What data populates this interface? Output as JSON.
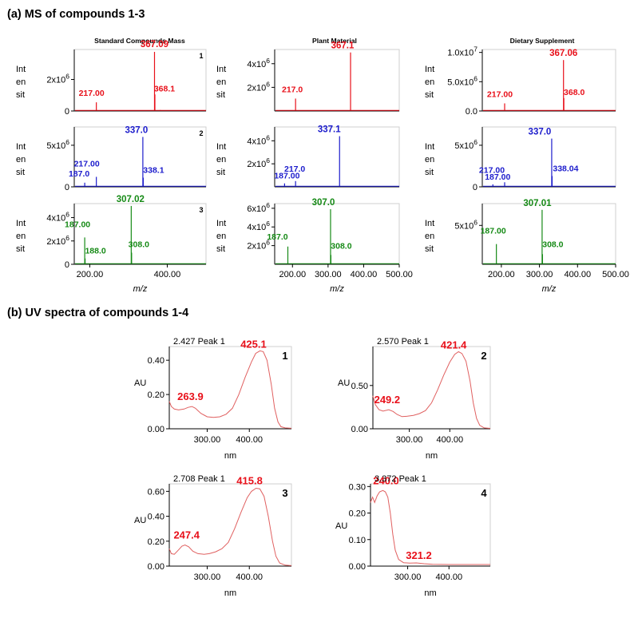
{
  "sections": {
    "a_title": "(a)  MS of compounds 1-3",
    "b_title": "(b) UV spectra of compounds 1-4"
  },
  "ms": {
    "column_titles": [
      "Standard Compounds Mass",
      "Plant Material",
      "Dietary Supplement"
    ],
    "ylabel_lines": [
      "Int",
      "en",
      "sit"
    ],
    "xlabel": "m/z",
    "colors": {
      "compound1": "#e8101a",
      "compound2": "#1c1ccc",
      "compound3": "#168a16"
    }
  },
  "uv": {
    "xlabel": "nm",
    "ylabel": "AU",
    "line_color": "#e06060",
    "label_color": "#e8101a"
  },
  "chart_data": [
    {
      "id": "ms1_std",
      "type": "line",
      "kind": "ms",
      "series_color": "compound1",
      "xlim": [
        160,
        500
      ],
      "ylim": [
        0,
        3900000
      ],
      "yticks": [
        {
          "v": 0,
          "label": "0"
        },
        {
          "v": 2000000,
          "label": "2x10^6"
        }
      ],
      "xticks": [],
      "panel_number": "1",
      "baseline": [
        [
          160,
          500
        ]
      ],
      "peaks": [
        {
          "x": 217.0,
          "y": 550000,
          "label": "217.00"
        },
        {
          "x": 367.09,
          "y": 3750000,
          "label": "367.09"
        },
        {
          "x": 368.1,
          "y": 1050000,
          "label": "368.1"
        },
        {
          "x": 382,
          "y": 60000,
          "label": ""
        },
        {
          "x": 438,
          "y": 50000,
          "label": ""
        }
      ]
    },
    {
      "id": "ms1_plant",
      "type": "line",
      "kind": "ms",
      "series_color": "compound1",
      "xlim": [
        160,
        500
      ],
      "ylim": [
        0,
        5200000
      ],
      "yticks": [
        {
          "v": 2000000,
          "label": "2x10^6"
        },
        {
          "v": 4000000,
          "label": "4x10^6"
        }
      ],
      "xticks": [],
      "panel_number": "",
      "baseline": [
        [
          160,
          500
        ]
      ],
      "peaks": [
        {
          "x": 217.0,
          "y": 1050000,
          "label": "217.0"
        },
        {
          "x": 367.1,
          "y": 4950000,
          "label": "367.1"
        }
      ]
    },
    {
      "id": "ms1_diet",
      "type": "line",
      "kind": "ms",
      "series_color": "compound1",
      "xlim": [
        160,
        500
      ],
      "ylim": [
        0,
        10500000
      ],
      "yticks": [
        {
          "v": 0,
          "label": "0.0"
        },
        {
          "v": 5000000,
          "label": "5.0x10^6"
        },
        {
          "v": 10000000,
          "label": "1.0x10^7"
        }
      ],
      "xticks": [],
      "panel_number": "",
      "baseline": [
        [
          160,
          500
        ]
      ],
      "peaks": [
        {
          "x": 217.0,
          "y": 1300000,
          "label": "217.00"
        },
        {
          "x": 367.06,
          "y": 8700000,
          "label": "367.06"
        },
        {
          "x": 368.0,
          "y": 2200000,
          "label": "368.0"
        }
      ]
    },
    {
      "id": "ms2_std",
      "type": "line",
      "kind": "ms",
      "series_color": "compound2",
      "xlim": [
        160,
        500
      ],
      "ylim": [
        0,
        7200000
      ],
      "yticks": [
        {
          "v": 0,
          "label": "0"
        },
        {
          "v": 5000000,
          "label": "5x10^6"
        }
      ],
      "xticks": [],
      "panel_number": "2",
      "baseline": [
        [
          160,
          500
        ]
      ],
      "peaks": [
        {
          "x": 187.0,
          "y": 500000,
          "label": "187.0"
        },
        {
          "x": 217.0,
          "y": 1200000,
          "label": "217.00"
        },
        {
          "x": 337.0,
          "y": 6000000,
          "label": "337.0"
        },
        {
          "x": 338.1,
          "y": 1100000,
          "label": "338.1"
        }
      ]
    },
    {
      "id": "ms2_plant",
      "type": "line",
      "kind": "ms",
      "series_color": "compound2",
      "xlim": [
        160,
        500
      ],
      "ylim": [
        0,
        5200000
      ],
      "yticks": [
        {
          "v": 2000000,
          "label": "2x10^6"
        },
        {
          "v": 4000000,
          "label": "4x10^6"
        }
      ],
      "xticks": [],
      "panel_number": "",
      "baseline": [
        [
          160,
          500
        ]
      ],
      "peaks": [
        {
          "x": 187.0,
          "y": 300000,
          "label": "187.00"
        },
        {
          "x": 217.0,
          "y": 500000,
          "label": "217.0"
        },
        {
          "x": 337.1,
          "y": 4400000,
          "label": "337.1"
        }
      ]
    },
    {
      "id": "ms2_diet",
      "type": "line",
      "kind": "ms",
      "series_color": "compound2",
      "xlim": [
        160,
        500
      ],
      "ylim": [
        0,
        7200000
      ],
      "yticks": [
        {
          "v": 0,
          "label": "0"
        },
        {
          "v": 5000000,
          "label": "5x10^6"
        }
      ],
      "xticks": [],
      "panel_number": "",
      "baseline": [
        [
          160,
          500
        ]
      ],
      "peaks": [
        {
          "x": 187.0,
          "y": 300000,
          "label": "187.00"
        },
        {
          "x": 217.0,
          "y": 550000,
          "label": "217.00"
        },
        {
          "x": 337.0,
          "y": 5800000,
          "label": "337.0"
        },
        {
          "x": 338.04,
          "y": 1300000,
          "label": "338.04"
        }
      ]
    },
    {
      "id": "ms3_std",
      "type": "line",
      "kind": "ms",
      "series_color": "compound3",
      "xlim": [
        160,
        500
      ],
      "ylim": [
        0,
        5200000
      ],
      "yticks": [
        {
          "v": 0,
          "label": "0"
        },
        {
          "v": 2000000,
          "label": "2x10^6"
        },
        {
          "v": 4000000,
          "label": "4x10^6"
        }
      ],
      "xticks": [
        {
          "v": 200,
          "label": "200.00"
        },
        {
          "v": 400,
          "label": "400.00"
        }
      ],
      "panel_number": "3",
      "baseline": [
        [
          160,
          500
        ]
      ],
      "peaks": [
        {
          "x": 187.0,
          "y": 2300000,
          "label": "187.00"
        },
        {
          "x": 188.0,
          "y": 500000,
          "label": "188.0"
        },
        {
          "x": 307.02,
          "y": 5000000,
          "label": "307.02"
        },
        {
          "x": 308.0,
          "y": 1000000,
          "label": "308.0"
        }
      ]
    },
    {
      "id": "ms3_plant",
      "type": "line",
      "kind": "ms",
      "series_color": "compound3",
      "xlim": [
        150,
        500
      ],
      "ylim": [
        0,
        6500000
      ],
      "yticks": [
        {
          "v": 2000000,
          "label": "2x10^6"
        },
        {
          "v": 4000000,
          "label": "4x10^6"
        },
        {
          "v": 6000000,
          "label": "6x10^6"
        }
      ],
      "xticks": [
        {
          "v": 200,
          "label": "200.00"
        },
        {
          "v": 300,
          "label": "300.00"
        },
        {
          "v": 400,
          "label": "400.00"
        },
        {
          "v": 500,
          "label": "500.00"
        }
      ],
      "panel_number": "",
      "baseline": [
        [
          150,
          500
        ]
      ],
      "peaks": [
        {
          "x": 187.0,
          "y": 1900000,
          "label": "187.0"
        },
        {
          "x": 307.0,
          "y": 5900000,
          "label": "307.0"
        },
        {
          "x": 308.0,
          "y": 1000000,
          "label": "308.0"
        }
      ]
    },
    {
      "id": "ms3_diet",
      "type": "line",
      "kind": "ms",
      "series_color": "compound3",
      "xlim": [
        150,
        500
      ],
      "ylim": [
        0,
        7800000
      ],
      "yticks": [
        {
          "v": 5000000,
          "label": "5x10^6"
        }
      ],
      "xticks": [
        {
          "v": 200,
          "label": "200.00"
        },
        {
          "v": 300,
          "label": "300.00"
        },
        {
          "v": 400,
          "label": "400.00"
        },
        {
          "v": 500,
          "label": "500.00"
        }
      ],
      "panel_number": "",
      "baseline": [
        [
          150,
          500
        ]
      ],
      "peaks": [
        {
          "x": 187.0,
          "y": 2600000,
          "label": "187.00"
        },
        {
          "x": 307.01,
          "y": 7000000,
          "label": "307.01"
        },
        {
          "x": 308.0,
          "y": 1300000,
          "label": "308.0"
        }
      ]
    },
    {
      "id": "uv1",
      "type": "line",
      "kind": "uv",
      "title": "2.427 Peak 1",
      "panel_number": "1",
      "xlim": [
        210,
        500
      ],
      "ylim": [
        0,
        0.48
      ],
      "yticks": [
        {
          "v": 0.0,
          "label": "0.00"
        },
        {
          "v": 0.2,
          "label": "0.20"
        },
        {
          "v": 0.4,
          "label": "0.40"
        }
      ],
      "xticks": [
        {
          "v": 300,
          "label": "300.00"
        },
        {
          "v": 400,
          "label": "400.00"
        }
      ],
      "peaks": [
        {
          "x": 263.9,
          "y": 0.13,
          "label": "263.9"
        },
        {
          "x": 425.1,
          "y": 0.45,
          "label": "425.1"
        }
      ],
      "points": [
        [
          210,
          0.16
        ],
        [
          215,
          0.13
        ],
        [
          222,
          0.115
        ],
        [
          232,
          0.11
        ],
        [
          245,
          0.115
        ],
        [
          255,
          0.125
        ],
        [
          263.9,
          0.13
        ],
        [
          272,
          0.12
        ],
        [
          285,
          0.09
        ],
        [
          300,
          0.07
        ],
        [
          315,
          0.066
        ],
        [
          330,
          0.07
        ],
        [
          345,
          0.085
        ],
        [
          360,
          0.12
        ],
        [
          375,
          0.2
        ],
        [
          390,
          0.3
        ],
        [
          405,
          0.39
        ],
        [
          415,
          0.44
        ],
        [
          425.1,
          0.455
        ],
        [
          433,
          0.45
        ],
        [
          442,
          0.4
        ],
        [
          452,
          0.26
        ],
        [
          460,
          0.12
        ],
        [
          468,
          0.04
        ],
        [
          475,
          0.012
        ],
        [
          485,
          0.005
        ],
        [
          500,
          0.003
        ]
      ]
    },
    {
      "id": "uv2",
      "type": "line",
      "kind": "uv",
      "title": "2.570 Peak 1",
      "panel_number": "2",
      "xlim": [
        210,
        500
      ],
      "ylim": [
        0,
        0.95
      ],
      "yticks": [
        {
          "v": 0.0,
          "label": "0.00"
        },
        {
          "v": 0.5,
          "label": "0.50"
        }
      ],
      "xticks": [
        {
          "v": 300,
          "label": "300.00"
        },
        {
          "v": 400,
          "label": "400.00"
        }
      ],
      "peaks": [
        {
          "x": 249.2,
          "y": 0.22,
          "label": "249.2"
        },
        {
          "x": 421.4,
          "y": 0.89,
          "label": "421.4"
        }
      ],
      "points": [
        [
          210,
          0.38
        ],
        [
          216,
          0.28
        ],
        [
          225,
          0.22
        ],
        [
          235,
          0.205
        ],
        [
          249.2,
          0.22
        ],
        [
          260,
          0.2
        ],
        [
          270,
          0.165
        ],
        [
          282,
          0.14
        ],
        [
          295,
          0.145
        ],
        [
          310,
          0.155
        ],
        [
          325,
          0.175
        ],
        [
          340,
          0.21
        ],
        [
          355,
          0.3
        ],
        [
          370,
          0.45
        ],
        [
          385,
          0.62
        ],
        [
          400,
          0.77
        ],
        [
          412,
          0.86
        ],
        [
          421.4,
          0.89
        ],
        [
          430,
          0.87
        ],
        [
          440,
          0.78
        ],
        [
          450,
          0.55
        ],
        [
          458,
          0.3
        ],
        [
          466,
          0.12
        ],
        [
          474,
          0.04
        ],
        [
          485,
          0.01
        ],
        [
          500,
          0.005
        ]
      ]
    },
    {
      "id": "uv3",
      "type": "line",
      "kind": "uv",
      "title": "2.708 Peak 1",
      "panel_number": "3",
      "xlim": [
        210,
        500
      ],
      "ylim": [
        0,
        0.66
      ],
      "yticks": [
        {
          "v": 0.0,
          "label": "0.00"
        },
        {
          "v": 0.2,
          "label": "0.20"
        },
        {
          "v": 0.4,
          "label": "0.40"
        },
        {
          "v": 0.6,
          "label": "0.60"
        }
      ],
      "xticks": [
        {
          "v": 300,
          "label": "300.00"
        },
        {
          "v": 400,
          "label": "400.00"
        }
      ],
      "peaks": [
        {
          "x": 247.4,
          "y": 0.17,
          "label": "247.4"
        },
        {
          "x": 415.8,
          "y": 0.63,
          "label": "415.8"
        }
      ],
      "points": [
        [
          210,
          0.14
        ],
        [
          215,
          0.1
        ],
        [
          222,
          0.095
        ],
        [
          232,
          0.13
        ],
        [
          240,
          0.16
        ],
        [
          247.4,
          0.17
        ],
        [
          256,
          0.155
        ],
        [
          266,
          0.12
        ],
        [
          278,
          0.1
        ],
        [
          292,
          0.095
        ],
        [
          305,
          0.1
        ],
        [
          320,
          0.115
        ],
        [
          335,
          0.14
        ],
        [
          350,
          0.19
        ],
        [
          365,
          0.3
        ],
        [
          380,
          0.43
        ],
        [
          395,
          0.55
        ],
        [
          405,
          0.6
        ],
        [
          415.8,
          0.625
        ],
        [
          425,
          0.62
        ],
        [
          435,
          0.56
        ],
        [
          445,
          0.4
        ],
        [
          455,
          0.2
        ],
        [
          463,
          0.08
        ],
        [
          472,
          0.025
        ],
        [
          485,
          0.008
        ],
        [
          500,
          0.004
        ]
      ]
    },
    {
      "id": "uv4",
      "type": "line",
      "kind": "uv",
      "title": "3.372 Peak 1",
      "panel_number": "4",
      "xlim": [
        210,
        500
      ],
      "ylim": [
        0,
        0.31
      ],
      "yticks": [
        {
          "v": 0.0,
          "label": "0.00"
        },
        {
          "v": 0.1,
          "label": "0.10"
        },
        {
          "v": 0.2,
          "label": "0.20"
        },
        {
          "v": 0.3,
          "label": "0.30"
        }
      ],
      "xticks": [
        {
          "v": 300,
          "label": "300.00"
        },
        {
          "v": 400,
          "label": "400.00"
        }
      ],
      "peaks": [
        {
          "x": 240.0,
          "y": 0.285,
          "label": "240.0"
        },
        {
          "x": 321.2,
          "y": 0.012,
          "label": "321.2"
        }
      ],
      "points": [
        [
          210,
          0.24
        ],
        [
          215,
          0.26
        ],
        [
          220,
          0.24
        ],
        [
          226,
          0.265
        ],
        [
          232,
          0.28
        ],
        [
          240.0,
          0.285
        ],
        [
          246,
          0.28
        ],
        [
          252,
          0.26
        ],
        [
          258,
          0.2
        ],
        [
          264,
          0.12
        ],
        [
          270,
          0.06
        ],
        [
          278,
          0.025
        ],
        [
          290,
          0.013
        ],
        [
          305,
          0.011
        ],
        [
          321.2,
          0.012
        ],
        [
          340,
          0.009
        ],
        [
          360,
          0.007
        ],
        [
          400,
          0.006
        ],
        [
          450,
          0.006
        ],
        [
          500,
          0.006
        ]
      ]
    }
  ]
}
